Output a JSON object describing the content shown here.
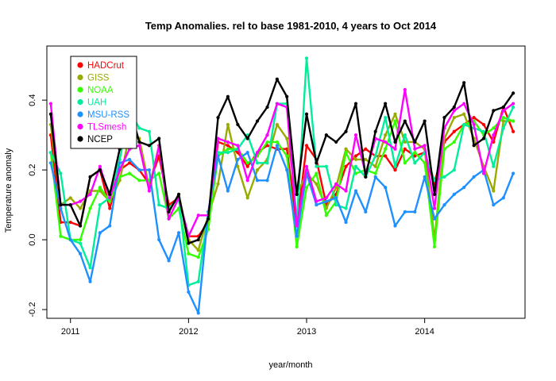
{
  "chart_data": {
    "type": "line",
    "title": "Temp Anomalies. rel to base 1981-2010, 4 years to Oct 2014",
    "xlabel": "year/month",
    "ylabel": "Temperature anomaly",
    "xlim": [
      2010.8,
      2014.85
    ],
    "ylim": [
      -0.225,
      0.555
    ],
    "x_ticks": [
      2011,
      2012,
      2013,
      2014
    ],
    "x_tick_labels": [
      "2011",
      "2012",
      "2013",
      "2014"
    ],
    "y_ticks": [
      -0.2,
      0.0,
      0.2,
      0.4
    ],
    "y_tick_labels": [
      "-0.2",
      "0.0",
      "0.2",
      "0.4"
    ],
    "grid": false,
    "legend_position": "top-left",
    "x": [
      2010.833,
      2010.917,
      2011.0,
      2011.083,
      2011.167,
      2011.25,
      2011.333,
      2011.417,
      2011.5,
      2011.583,
      2011.667,
      2011.75,
      2011.833,
      2011.917,
      2012.0,
      2012.083,
      2012.167,
      2012.25,
      2012.333,
      2012.417,
      2012.5,
      2012.583,
      2012.667,
      2012.75,
      2012.833,
      2012.917,
      2013.0,
      2013.083,
      2013.167,
      2013.25,
      2013.333,
      2013.417,
      2013.5,
      2013.583,
      2013.667,
      2013.75,
      2013.833,
      2013.917,
      2014.0,
      2014.083,
      2014.167,
      2014.25,
      2014.333,
      2014.417,
      2014.5,
      2014.583,
      2014.667,
      2014.75
    ],
    "series": [
      {
        "name": "HADCrut",
        "color": "#ff0000",
        "values": [
          0.3,
          0.05,
          0.05,
          0.04,
          0.18,
          0.2,
          0.09,
          0.2,
          0.22,
          0.2,
          0.16,
          0.24,
          0.1,
          0.12,
          0.01,
          0.01,
          0.05,
          0.28,
          0.27,
          0.25,
          0.21,
          0.25,
          0.27,
          0.26,
          0.26,
          0.04,
          0.27,
          0.23,
          0.1,
          0.13,
          0.21,
          0.24,
          0.26,
          0.24,
          0.24,
          0.2,
          0.26,
          0.24,
          0.25,
          0.16,
          0.28,
          0.31,
          0.33,
          0.35,
          0.33,
          0.28,
          0.38,
          0.31
        ]
      },
      {
        "name": "GISS",
        "color": "#99aa00",
        "values": [
          0.33,
          0.1,
          0.12,
          0.09,
          0.14,
          0.14,
          0.11,
          0.17,
          0.3,
          0.29,
          0.15,
          0.27,
          0.08,
          0.13,
          0.0,
          -0.03,
          0.07,
          0.16,
          0.33,
          0.21,
          0.12,
          0.2,
          0.23,
          0.33,
          0.29,
          0.13,
          0.19,
          0.16,
          0.09,
          0.15,
          0.26,
          0.23,
          0.23,
          0.21,
          0.3,
          0.36,
          0.28,
          0.28,
          0.26,
          0.0,
          0.29,
          0.35,
          0.36,
          0.29,
          0.21,
          0.14,
          0.34,
          0.34
        ]
      },
      {
        "name": "NOAA",
        "color": "#33ff00",
        "values": [
          0.25,
          0.01,
          0.0,
          0.0,
          0.09,
          0.15,
          0.11,
          0.18,
          0.19,
          0.17,
          0.17,
          0.19,
          0.06,
          0.09,
          -0.04,
          -0.05,
          0.03,
          0.24,
          0.26,
          0.26,
          0.22,
          0.24,
          0.28,
          0.28,
          0.24,
          -0.02,
          0.15,
          0.19,
          0.07,
          0.11,
          0.25,
          0.19,
          0.2,
          0.19,
          0.26,
          0.34,
          0.22,
          0.25,
          0.22,
          -0.02,
          0.26,
          0.28,
          0.33,
          0.34,
          0.3,
          0.32,
          0.35,
          0.34
        ]
      },
      {
        "name": "UAH",
        "color": "#00ee99",
        "values": [
          0.25,
          0.19,
          0.0,
          -0.01,
          -0.08,
          0.1,
          0.12,
          0.23,
          0.37,
          0.32,
          0.31,
          0.1,
          0.09,
          0.12,
          -0.13,
          -0.12,
          0.08,
          0.25,
          0.25,
          0.26,
          0.3,
          0.22,
          0.22,
          0.39,
          0.39,
          0.05,
          0.52,
          0.21,
          0.21,
          0.1,
          0.09,
          0.21,
          0.18,
          0.24,
          0.35,
          0.21,
          0.3,
          0.22,
          0.25,
          0.17,
          0.18,
          0.2,
          0.33,
          0.32,
          0.31,
          0.21,
          0.32,
          0.38
        ]
      },
      {
        "name": "MSU-RSS",
        "color": "#1e90ff",
        "values": [
          0.22,
          0.09,
          0.0,
          -0.04,
          -0.12,
          0.02,
          0.04,
          0.22,
          0.23,
          0.2,
          0.2,
          0.0,
          -0.06,
          0.02,
          -0.15,
          -0.21,
          0.08,
          0.24,
          0.14,
          0.23,
          0.25,
          0.17,
          0.17,
          0.27,
          0.2,
          0.01,
          0.19,
          0.1,
          0.11,
          0.12,
          0.05,
          0.14,
          0.08,
          0.18,
          0.15,
          0.04,
          0.08,
          0.08,
          0.18,
          0.06,
          0.1,
          0.13,
          0.15,
          0.18,
          0.2,
          0.1,
          0.12,
          0.19
        ]
      },
      {
        "name": "TLSmesh",
        "color": "#ff00ff",
        "values": [
          0.39,
          0.1,
          0.1,
          0.11,
          0.13,
          0.21,
          0.12,
          0.2,
          0.26,
          0.27,
          0.14,
          0.27,
          0.06,
          0.12,
          0.01,
          0.07,
          0.07,
          0.29,
          0.28,
          0.27,
          0.17,
          0.25,
          0.3,
          0.39,
          0.38,
          0.04,
          0.21,
          0.11,
          0.12,
          0.16,
          0.14,
          0.3,
          0.19,
          0.29,
          0.28,
          0.26,
          0.43,
          0.26,
          0.27,
          0.09,
          0.32,
          0.37,
          0.39,
          0.33,
          0.19,
          0.3,
          0.37,
          0.39
        ]
      },
      {
        "name": "NCEP",
        "color": "#000000",
        "values": [
          0.36,
          0.1,
          0.1,
          0.04,
          0.18,
          0.2,
          0.13,
          0.26,
          0.38,
          0.28,
          0.27,
          0.29,
          0.08,
          0.13,
          -0.01,
          0.0,
          0.06,
          0.35,
          0.41,
          0.33,
          0.29,
          0.34,
          0.38,
          0.46,
          0.41,
          0.13,
          0.36,
          0.22,
          0.3,
          0.28,
          0.31,
          0.39,
          0.18,
          0.31,
          0.39,
          0.28,
          0.34,
          0.28,
          0.34,
          0.13,
          0.35,
          0.38,
          0.45,
          0.27,
          0.29,
          0.37,
          0.38,
          0.42
        ]
      }
    ]
  }
}
